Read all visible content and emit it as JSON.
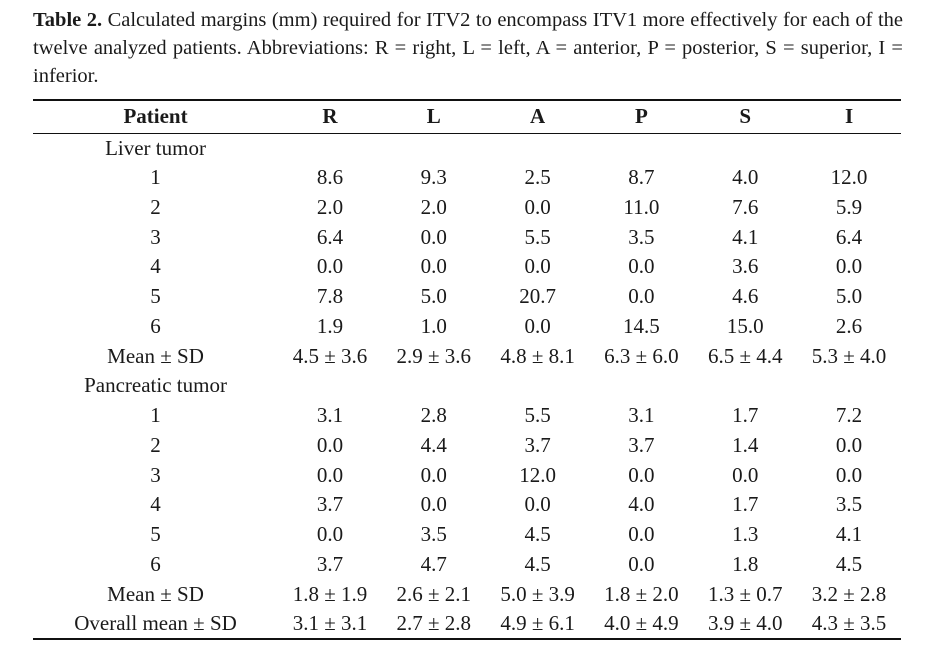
{
  "caption": {
    "label": "Table 2.",
    "text": " Calculated margins (mm) required for ITV2 to encompass ITV1 more effectively for each of the twelve analyzed patients. Abbreviations: R = right, L = left, A = anterior, P = posterior, S = superior, I = inferior."
  },
  "table": {
    "headers": [
      "Patient",
      "R",
      "L",
      "A",
      "P",
      "S",
      "I"
    ],
    "groups": [
      {
        "title": "Liver tumor",
        "rows": [
          [
            "1",
            "8.6",
            "9.3",
            "2.5",
            "8.7",
            "4.0",
            "12.0"
          ],
          [
            "2",
            "2.0",
            "2.0",
            "0.0",
            "11.0",
            "7.6",
            "5.9"
          ],
          [
            "3",
            "6.4",
            "0.0",
            "5.5",
            "3.5",
            "4.1",
            "6.4"
          ],
          [
            "4",
            "0.0",
            "0.0",
            "0.0",
            "0.0",
            "3.6",
            "0.0"
          ],
          [
            "5",
            "7.8",
            "5.0",
            "20.7",
            "0.0",
            "4.6",
            "5.0"
          ],
          [
            "6",
            "1.9",
            "1.0",
            "0.0",
            "14.5",
            "15.0",
            "2.6"
          ],
          [
            "Mean ± SD",
            "4.5 ± 3.6",
            "2.9 ± 3.6",
            "4.8 ± 8.1",
            "6.3 ± 6.0",
            "6.5 ± 4.4",
            "5.3 ± 4.0"
          ]
        ]
      },
      {
        "title": "Pancreatic tumor",
        "rows": [
          [
            "1",
            "3.1",
            "2.8",
            "5.5",
            "3.1",
            "1.7",
            "7.2"
          ],
          [
            "2",
            "0.0",
            "4.4",
            "3.7",
            "3.7",
            "1.4",
            "0.0"
          ],
          [
            "3",
            "0.0",
            "0.0",
            "12.0",
            "0.0",
            "0.0",
            "0.0"
          ],
          [
            "4",
            "3.7",
            "0.0",
            "0.0",
            "4.0",
            "1.7",
            "3.5"
          ],
          [
            "5",
            "0.0",
            "3.5",
            "4.5",
            "0.0",
            "1.3",
            "4.1"
          ],
          [
            "6",
            "3.7",
            "4.7",
            "4.5",
            "0.0",
            "1.8",
            "4.5"
          ],
          [
            "Mean ± SD",
            "1.8 ± 1.9",
            "2.6 ± 2.1",
            "5.0 ± 3.9",
            "1.8 ± 2.0",
            "1.3 ± 0.7",
            "3.2 ± 2.8"
          ]
        ]
      }
    ],
    "overall": [
      "Overall mean ± SD",
      "3.1 ± 3.1",
      "2.7 ± 2.8",
      "4.9 ± 6.1",
      "4.0 ± 4.9",
      "3.9 ± 4.0",
      "4.3 ± 3.5"
    ]
  }
}
